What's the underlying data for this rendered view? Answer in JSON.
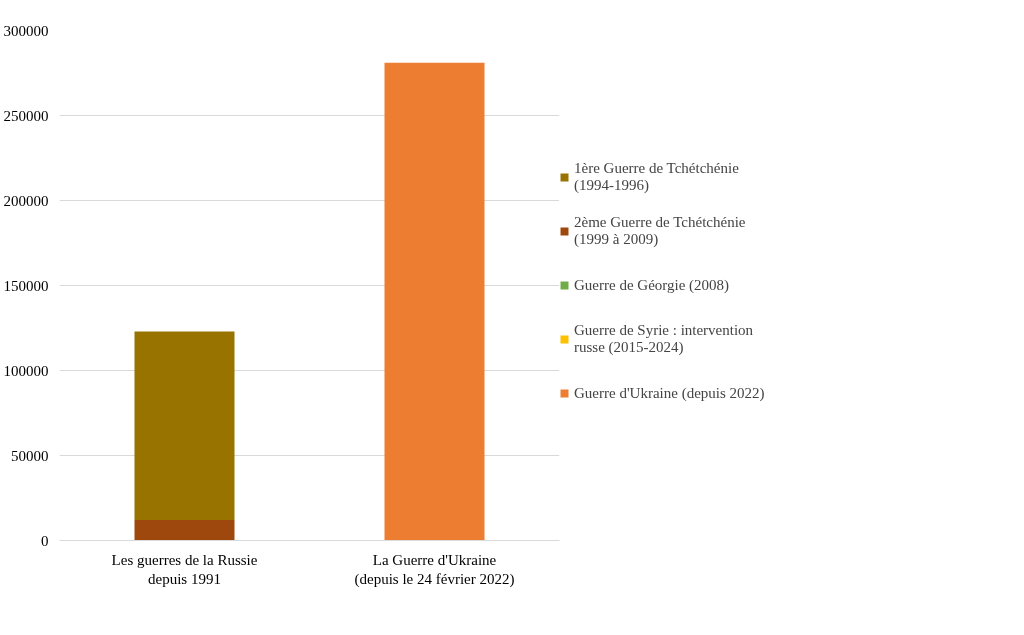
{
  "chart_data": {
    "type": "bar",
    "stacked": true,
    "categories": [
      "Les guerres de la Russie depuis 1991",
      "La Guerre d'Ukraine (depuis le 24 février 2022)"
    ],
    "series": [
      {
        "name": "Guerre d'Ukraine (depuis 2022)",
        "color": "#ed7d31",
        "values": [
          null,
          281000
        ]
      },
      {
        "name": "Guerre de Syrie : intervention russe (2015-2024)",
        "color": "#ffc000",
        "values": [
          0,
          null
        ]
      },
      {
        "name": "Guerre de Géorgie (2008)",
        "color": "#70ad47",
        "values": [
          0,
          null
        ]
      },
      {
        "name": "2ème Guerre de Tchétchénie (1999 à 2009)",
        "color": "#9e480e",
        "values": [
          12000,
          null
        ]
      },
      {
        "name": "1ère Guerre de Tchétchénie (1994-1996)",
        "color": "#997300",
        "values": [
          111000,
          null
        ]
      }
    ],
    "ylim": [
      0,
      300000
    ],
    "yticks": [
      0,
      50000,
      100000,
      150000,
      200000,
      250000,
      300000
    ],
    "grid": "y",
    "legend": "right"
  }
}
